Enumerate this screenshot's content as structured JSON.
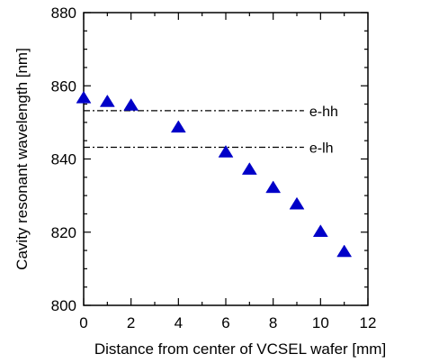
{
  "chart_data": {
    "type": "scatter",
    "title": "",
    "xlabel": "Distance from center of VCSEL wafer [mm]",
    "ylabel": "Cavity resonant wavelength [nm]",
    "xlim": [
      0,
      12
    ],
    "ylim": [
      800,
      880
    ],
    "xticks": [
      0,
      2,
      4,
      6,
      8,
      10,
      12
    ],
    "yticks": [
      800,
      820,
      840,
      860,
      880
    ],
    "grid": false,
    "marker": "triangle",
    "marker_color": "#0000c8",
    "series": [
      {
        "x": [
          0,
          1,
          2,
          4,
          6,
          7,
          8,
          9,
          10,
          11
        ],
        "y": [
          856.5,
          855.5,
          854.5,
          848.5,
          841.7,
          837.0,
          832.0,
          827.5,
          820.0,
          814.5
        ]
      }
    ],
    "reference_lines": [
      {
        "label": "e-hh",
        "y": 853.2,
        "x_start": 0,
        "x_end": 9.3
      },
      {
        "label": "e-lh",
        "y": 843.2,
        "x_start": 0,
        "x_end": 9.3
      }
    ]
  }
}
